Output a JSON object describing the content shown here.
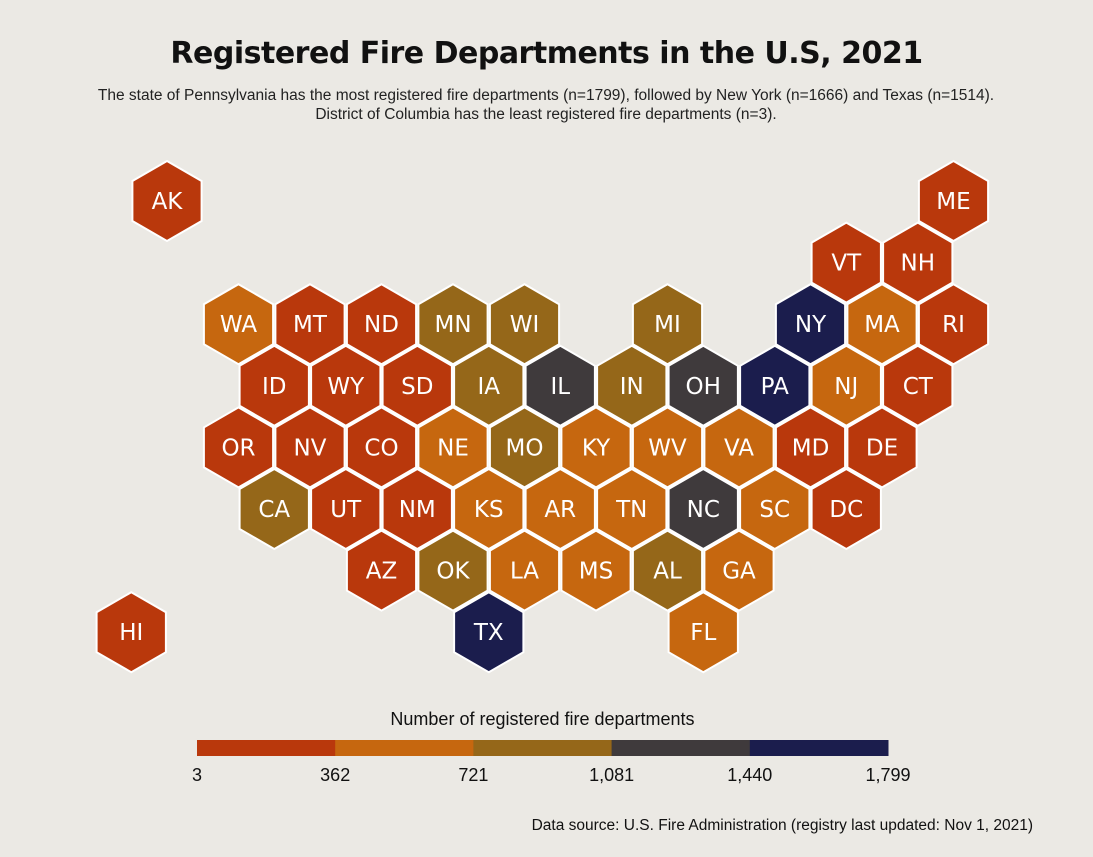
{
  "chart_data": {
    "type": "hexbin-map",
    "title": "Registered Fire Departments in the U.S, 2021",
    "subtitle": "The state of Pennsylvania has the most registered fire departments (n=1799), followed by New York (n=1666) and Texas (n=1514). District of Columbia has the least registered fire departments (n=3).",
    "legend_title": "Number of registered fire departments",
    "legend_breaks": [
      "3",
      "362",
      "721",
      "1,081",
      "1,440",
      "1,799"
    ],
    "bin_colors": [
      "#b9380c",
      "#c6670f",
      "#956719",
      "#3f3a3c",
      "#1b1d4d"
    ],
    "source": "Data source: U.S. Fire Administration (registry last updated: Nov 1, 2021)",
    "states": [
      {
        "abbr": "AK",
        "row": 0,
        "col": 0,
        "bin": 0
      },
      {
        "abbr": "ME",
        "row": 0,
        "col": 11,
        "bin": 0
      },
      {
        "abbr": "VT",
        "row": 1,
        "col": 9.5,
        "bin": 0
      },
      {
        "abbr": "NH",
        "row": 1,
        "col": 10.5,
        "bin": 0
      },
      {
        "abbr": "WA",
        "row": 2,
        "col": 1,
        "bin": 1
      },
      {
        "abbr": "MT",
        "row": 2,
        "col": 2,
        "bin": 0
      },
      {
        "abbr": "ND",
        "row": 2,
        "col": 3,
        "bin": 0
      },
      {
        "abbr": "MN",
        "row": 2,
        "col": 4,
        "bin": 2
      },
      {
        "abbr": "WI",
        "row": 2,
        "col": 5,
        "bin": 2
      },
      {
        "abbr": "MI",
        "row": 2,
        "col": 7,
        "bin": 2
      },
      {
        "abbr": "NY",
        "row": 2,
        "col": 9,
        "bin": 4
      },
      {
        "abbr": "MA",
        "row": 2,
        "col": 10,
        "bin": 1
      },
      {
        "abbr": "RI",
        "row": 2,
        "col": 11,
        "bin": 0
      },
      {
        "abbr": "ID",
        "row": 3,
        "col": 1.5,
        "bin": 0
      },
      {
        "abbr": "WY",
        "row": 3,
        "col": 2.5,
        "bin": 0
      },
      {
        "abbr": "SD",
        "row": 3,
        "col": 3.5,
        "bin": 0
      },
      {
        "abbr": "IA",
        "row": 3,
        "col": 4.5,
        "bin": 2
      },
      {
        "abbr": "IL",
        "row": 3,
        "col": 5.5,
        "bin": 3
      },
      {
        "abbr": "IN",
        "row": 3,
        "col": 6.5,
        "bin": 2
      },
      {
        "abbr": "OH",
        "row": 3,
        "col": 7.5,
        "bin": 3
      },
      {
        "abbr": "PA",
        "row": 3,
        "col": 8.5,
        "bin": 4
      },
      {
        "abbr": "NJ",
        "row": 3,
        "col": 9.5,
        "bin": 1
      },
      {
        "abbr": "CT",
        "row": 3,
        "col": 10.5,
        "bin": 0
      },
      {
        "abbr": "OR",
        "row": 4,
        "col": 1,
        "bin": 0
      },
      {
        "abbr": "NV",
        "row": 4,
        "col": 2,
        "bin": 0
      },
      {
        "abbr": "CO",
        "row": 4,
        "col": 3,
        "bin": 0
      },
      {
        "abbr": "NE",
        "row": 4,
        "col": 4,
        "bin": 1
      },
      {
        "abbr": "MO",
        "row": 4,
        "col": 5,
        "bin": 2
      },
      {
        "abbr": "KY",
        "row": 4,
        "col": 6,
        "bin": 1
      },
      {
        "abbr": "WV",
        "row": 4,
        "col": 7,
        "bin": 1
      },
      {
        "abbr": "VA",
        "row": 4,
        "col": 8,
        "bin": 1
      },
      {
        "abbr": "MD",
        "row": 4,
        "col": 9,
        "bin": 0
      },
      {
        "abbr": "DE",
        "row": 4,
        "col": 10,
        "bin": 0
      },
      {
        "abbr": "CA",
        "row": 5,
        "col": 1.5,
        "bin": 2
      },
      {
        "abbr": "UT",
        "row": 5,
        "col": 2.5,
        "bin": 0
      },
      {
        "abbr": "NM",
        "row": 5,
        "col": 3.5,
        "bin": 0
      },
      {
        "abbr": "KS",
        "row": 5,
        "col": 4.5,
        "bin": 1
      },
      {
        "abbr": "AR",
        "row": 5,
        "col": 5.5,
        "bin": 1
      },
      {
        "abbr": "TN",
        "row": 5,
        "col": 6.5,
        "bin": 1
      },
      {
        "abbr": "NC",
        "row": 5,
        "col": 7.5,
        "bin": 3
      },
      {
        "abbr": "SC",
        "row": 5,
        "col": 8.5,
        "bin": 1
      },
      {
        "abbr": "DC",
        "row": 5,
        "col": 9.5,
        "bin": 0
      },
      {
        "abbr": "AZ",
        "row": 6,
        "col": 3,
        "bin": 0
      },
      {
        "abbr": "OK",
        "row": 6,
        "col": 4,
        "bin": 2
      },
      {
        "abbr": "LA",
        "row": 6,
        "col": 5,
        "bin": 1
      },
      {
        "abbr": "MS",
        "row": 6,
        "col": 6,
        "bin": 1
      },
      {
        "abbr": "AL",
        "row": 6,
        "col": 7,
        "bin": 2
      },
      {
        "abbr": "GA",
        "row": 6,
        "col": 8,
        "bin": 1
      },
      {
        "abbr": "HI",
        "row": 7,
        "col": -0.5,
        "bin": 0
      },
      {
        "abbr": "TX",
        "row": 7,
        "col": 4.5,
        "bin": 4
      },
      {
        "abbr": "FL",
        "row": 7,
        "col": 7.5,
        "bin": 1
      }
    ]
  }
}
